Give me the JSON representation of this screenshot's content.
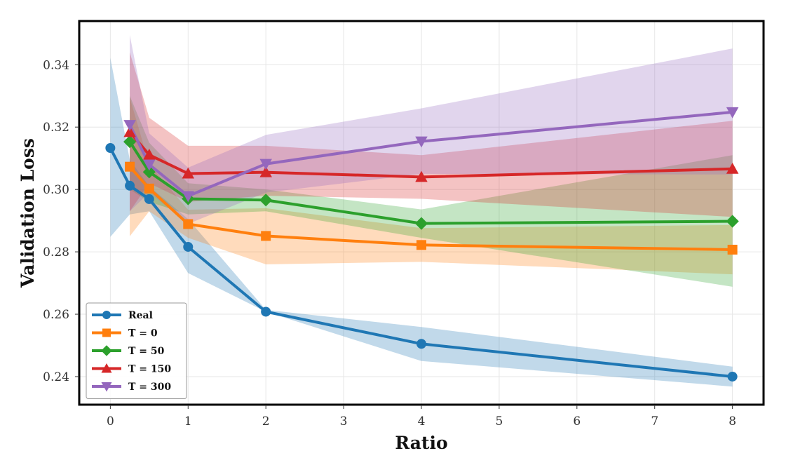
{
  "chart_data": {
    "type": "line",
    "title": "",
    "xlabel": "Ratio",
    "ylabel": "Validation Loss",
    "xlim": [
      -0.4,
      8.4
    ],
    "ylim": [
      0.231,
      0.354
    ],
    "xticks": [
      0,
      1,
      2,
      3,
      4,
      5,
      6,
      7,
      8
    ],
    "xtick_labels": [
      "0",
      "1",
      "2",
      "3",
      "4",
      "5",
      "6",
      "7",
      "8"
    ],
    "yticks": [
      0.24,
      0.26,
      0.28,
      0.3,
      0.32,
      0.34
    ],
    "ytick_labels": [
      "0.24",
      "0.26",
      "0.28",
      "0.30",
      "0.32",
      "0.34"
    ],
    "grid": true,
    "legend_position": "bottom-left",
    "series": [
      {
        "name": "Real",
        "color": "#1f77b4",
        "marker": "circle",
        "x": [
          0,
          0.25,
          0.5,
          1,
          2,
          4,
          8
        ],
        "y": [
          0.3133,
          0.3012,
          0.2969,
          0.2816,
          0.2608,
          0.2505,
          0.24
        ],
        "lower": [
          0.2848,
          0.292,
          0.293,
          0.2732,
          0.2608,
          0.245,
          0.2368
        ],
        "upper": [
          0.3422,
          0.3095,
          0.301,
          0.2905,
          0.2614,
          0.2559,
          0.2432
        ]
      },
      {
        "name": "T = 0",
        "color": "#ff7f0e",
        "marker": "square",
        "x": [
          0.25,
          0.5,
          1,
          2,
          4,
          8
        ],
        "y": [
          0.3073,
          0.3003,
          0.2889,
          0.2851,
          0.2822,
          0.2807
        ],
        "lower": [
          0.285,
          0.293,
          0.2845,
          0.276,
          0.2768,
          0.2728
        ],
        "upper": [
          0.3295,
          0.308,
          0.2935,
          0.294,
          0.2876,
          0.2886
        ]
      },
      {
        "name": "T = 50",
        "color": "#2ca02c",
        "marker": "diamond",
        "x": [
          0.25,
          0.5,
          1,
          2,
          4,
          8
        ],
        "y": [
          0.3153,
          0.3056,
          0.297,
          0.2966,
          0.2891,
          0.2898
        ],
        "lower": [
          0.3,
          0.296,
          0.292,
          0.293,
          0.2845,
          0.2688
        ],
        "upper": [
          0.33,
          0.315,
          0.302,
          0.3,
          0.2936,
          0.311
        ]
      },
      {
        "name": "T = 150",
        "color": "#d62728",
        "marker": "triangle-up",
        "x": [
          0.25,
          0.5,
          1,
          2,
          4,
          8
        ],
        "y": [
          0.3184,
          0.3111,
          0.3051,
          0.3055,
          0.304,
          0.3066
        ],
        "lower": [
          0.293,
          0.302,
          0.296,
          0.298,
          0.297,
          0.2912
        ],
        "upper": [
          0.344,
          0.323,
          0.314,
          0.314,
          0.311,
          0.322
        ]
      },
      {
        "name": "T = 300",
        "color": "#9467bd",
        "marker": "triangle-down",
        "x": [
          0.25,
          0.5,
          1,
          2,
          4,
          8
        ],
        "y": [
          0.3207,
          0.308,
          0.2979,
          0.3082,
          0.3154,
          0.3248
        ],
        "lower": [
          0.293,
          0.299,
          0.289,
          0.299,
          0.305,
          0.3048
        ],
        "upper": [
          0.3495,
          0.318,
          0.307,
          0.3175,
          0.326,
          0.3452
        ]
      }
    ]
  }
}
